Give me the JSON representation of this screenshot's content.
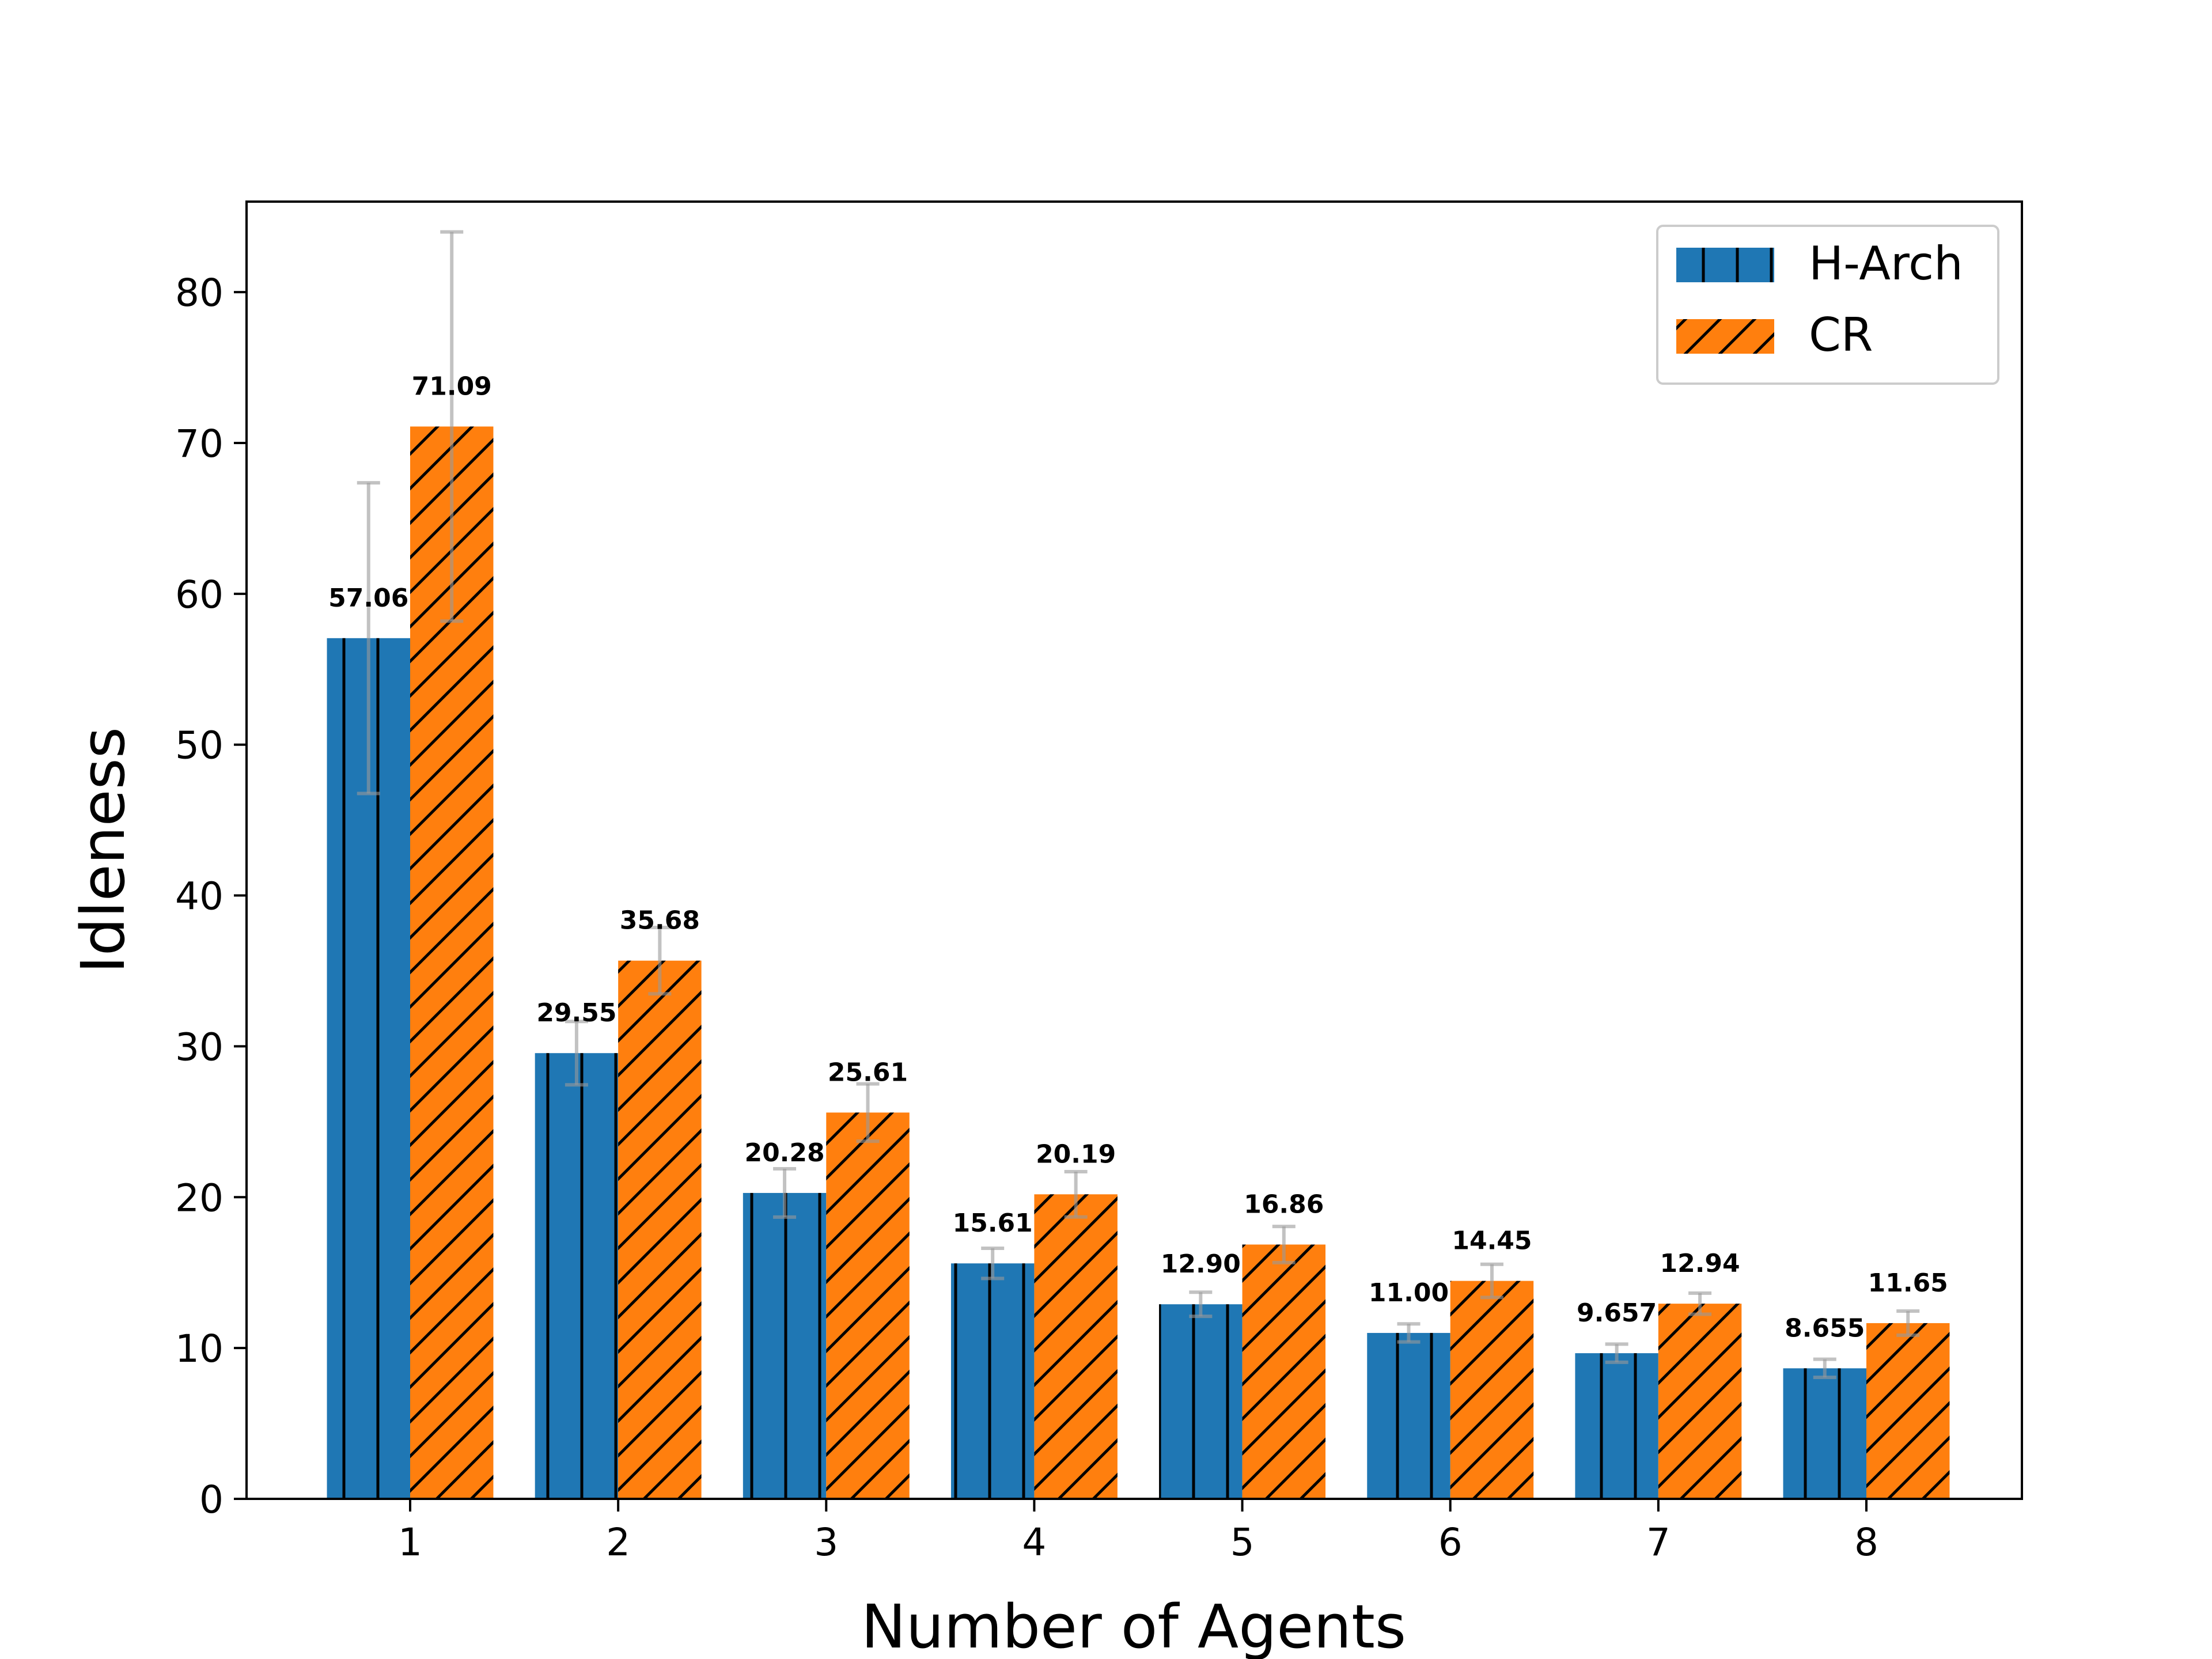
{
  "chart_data": {
    "type": "bar",
    "title": "",
    "xlabel": "Number of Agents",
    "ylabel": "Idleness",
    "categories": [
      "1",
      "2",
      "3",
      "4",
      "5",
      "6",
      "7",
      "8"
    ],
    "ylim": [
      0,
      86
    ],
    "yticks": [
      0,
      10,
      20,
      30,
      40,
      50,
      60,
      70,
      80
    ],
    "grid": false,
    "legend_position": "top-right",
    "series": [
      {
        "name": "H-Arch",
        "color": "#1f77b4",
        "hatch": "vertical",
        "values": [
          57.06,
          29.55,
          20.28,
          15.61,
          12.9,
          11.0,
          9.657,
          8.655
        ],
        "labels": [
          "57.06",
          "29.55",
          "20.28",
          "15.61",
          "12.90",
          "11.00",
          "9.657",
          "8.655"
        ],
        "error": [
          10.3,
          2.1,
          1.6,
          1.0,
          0.8,
          0.6,
          0.6,
          0.6
        ]
      },
      {
        "name": "CR",
        "color": "#ff7f0e",
        "hatch": "diagonal",
        "values": [
          71.09,
          35.68,
          25.61,
          20.19,
          16.86,
          14.45,
          12.94,
          11.65
        ],
        "labels": [
          "71.09",
          "35.68",
          "25.61",
          "20.19",
          "16.86",
          "14.45",
          "12.94",
          "11.65"
        ],
        "error": [
          12.9,
          2.2,
          1.9,
          1.5,
          1.2,
          1.1,
          0.7,
          0.8
        ]
      }
    ]
  }
}
